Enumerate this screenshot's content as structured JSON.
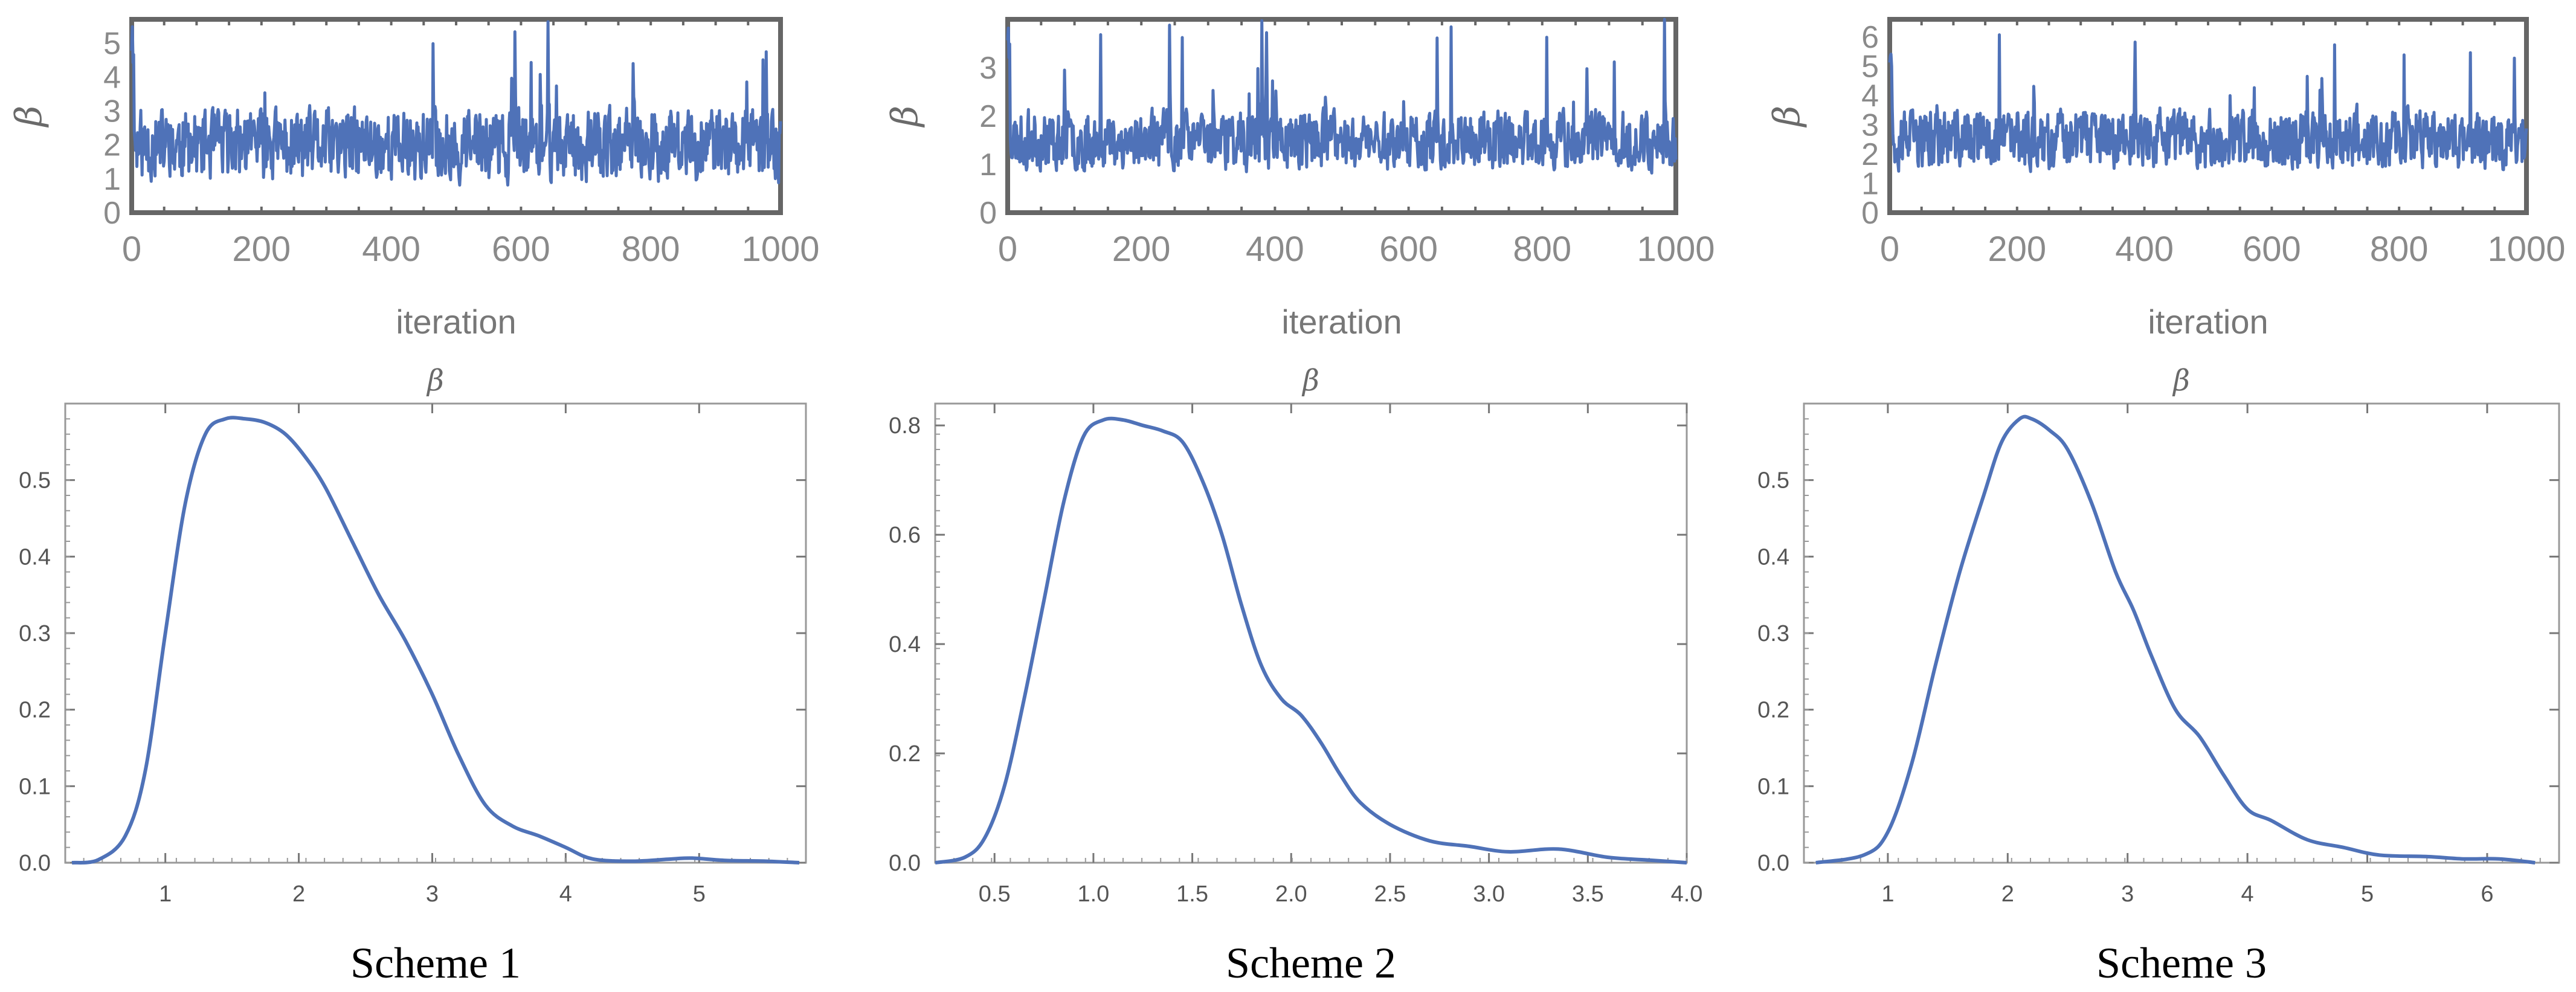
{
  "colors": {
    "line": "#4f72b8",
    "frame": "#666666",
    "density_frame": "#999999",
    "tick_text": "#555555"
  },
  "chart_data": [
    {
      "type": "line",
      "id": "trace-1",
      "panel": "Scheme 1 trace",
      "xlabel": "iteration",
      "ylabel": "β",
      "xlim": [
        0,
        1000
      ],
      "ylim": [
        0,
        5.7
      ],
      "xticks": [
        "0",
        "200",
        "400",
        "600",
        "800",
        "1000"
      ],
      "yticks": [
        "0",
        "1",
        "2",
        "3",
        "4",
        "5"
      ],
      "trace": {
        "n": 1000,
        "center": 2.0,
        "spread": 0.95,
        "min": 0.3,
        "max": 5.7,
        "seed": 11
      }
    },
    {
      "type": "line",
      "id": "trace-2",
      "panel": "Scheme 2 trace",
      "xlabel": "iteration",
      "ylabel": "β",
      "xlim": [
        0,
        1000
      ],
      "ylim": [
        0,
        4.0
      ],
      "xticks": [
        "0",
        "200",
        "400",
        "600",
        "800",
        "1000"
      ],
      "yticks": [
        "0",
        "1",
        "2",
        "3"
      ],
      "trace": {
        "n": 1000,
        "center": 1.5,
        "spread": 0.55,
        "min": 0.2,
        "max": 4.0,
        "seed": 23
      }
    },
    {
      "type": "line",
      "id": "trace-3",
      "panel": "Scheme 3 trace",
      "xlabel": "iteration",
      "ylabel": "β",
      "xlim": [
        0,
        1000
      ],
      "ylim": [
        0,
        6.6
      ],
      "xticks": [
        "0",
        "200",
        "400",
        "600",
        "800",
        "1000"
      ],
      "yticks": [
        "0",
        "1",
        "2",
        "3",
        "4",
        "5",
        "6"
      ],
      "trace": {
        "n": 1000,
        "center": 2.5,
        "spread": 0.9,
        "min": 0.4,
        "max": 6.5,
        "seed": 37
      }
    },
    {
      "type": "line",
      "id": "density-1",
      "panel": "Scheme 1 density",
      "title": "β",
      "caption": "Scheme 1",
      "xlim": [
        0.25,
        5.8
      ],
      "ylim": [
        0,
        0.6
      ],
      "xticks": [
        "1",
        "2",
        "3",
        "4",
        "5"
      ],
      "yticks": [
        "0.0",
        "0.1",
        "0.2",
        "0.3",
        "0.4",
        "0.5"
      ],
      "x": [
        0.3,
        0.5,
        0.7,
        0.85,
        1.0,
        1.15,
        1.3,
        1.45,
        1.6,
        1.75,
        1.9,
        2.05,
        2.2,
        2.4,
        2.6,
        2.8,
        3.0,
        3.2,
        3.4,
        3.6,
        3.8,
        4.0,
        4.2,
        4.5,
        4.8,
        4.95,
        5.2,
        5.5,
        5.75
      ],
      "y": [
        0.0,
        0.004,
        0.035,
        0.12,
        0.3,
        0.47,
        0.56,
        0.58,
        0.58,
        0.575,
        0.56,
        0.53,
        0.49,
        0.42,
        0.35,
        0.29,
        0.22,
        0.14,
        0.075,
        0.048,
        0.035,
        0.02,
        0.005,
        0.002,
        0.005,
        0.006,
        0.003,
        0.002,
        0.0
      ]
    },
    {
      "type": "line",
      "id": "density-2",
      "panel": "Scheme 2 density",
      "title": "β",
      "caption": "Scheme 2",
      "xlim": [
        0.2,
        4.0
      ],
      "ylim": [
        0,
        0.84
      ],
      "xticks": [
        "0.5",
        "1.0",
        "1.5",
        "2.0",
        "2.5",
        "3.0",
        "3.5",
        "4.0"
      ],
      "yticks": [
        "0.0",
        "0.2",
        "0.4",
        "0.6",
        "0.8"
      ],
      "x": [
        0.2,
        0.35,
        0.45,
        0.55,
        0.65,
        0.75,
        0.85,
        0.95,
        1.05,
        1.15,
        1.25,
        1.35,
        1.45,
        1.55,
        1.65,
        1.75,
        1.85,
        1.95,
        2.05,
        2.15,
        2.25,
        2.35,
        2.5,
        2.7,
        2.9,
        3.1,
        3.35,
        3.6,
        3.8,
        4.0
      ],
      "y": [
        0.0,
        0.01,
        0.045,
        0.14,
        0.3,
        0.48,
        0.66,
        0.78,
        0.81,
        0.81,
        0.8,
        0.79,
        0.77,
        0.7,
        0.6,
        0.47,
        0.36,
        0.3,
        0.27,
        0.22,
        0.16,
        0.11,
        0.07,
        0.04,
        0.03,
        0.02,
        0.025,
        0.01,
        0.005,
        0.0
      ]
    },
    {
      "type": "line",
      "id": "density-3",
      "panel": "Scheme 3 density",
      "title": "β",
      "caption": "Scheme 3",
      "xlim": [
        0.3,
        6.6
      ],
      "ylim": [
        0,
        0.6
      ],
      "xticks": [
        "1",
        "2",
        "3",
        "4",
        "5",
        "6"
      ],
      "yticks": [
        "0.0",
        "0.1",
        "0.2",
        "0.3",
        "0.4",
        "0.5"
      ],
      "x": [
        0.4,
        0.8,
        1.0,
        1.2,
        1.4,
        1.6,
        1.8,
        1.95,
        2.1,
        2.2,
        2.35,
        2.5,
        2.7,
        2.9,
        3.05,
        3.2,
        3.4,
        3.6,
        3.8,
        4.0,
        4.2,
        4.5,
        4.8,
        5.1,
        5.5,
        5.8,
        6.1,
        6.4
      ],
      "y": [
        0.0,
        0.01,
        0.04,
        0.13,
        0.26,
        0.38,
        0.48,
        0.55,
        0.58,
        0.58,
        0.565,
        0.54,
        0.47,
        0.38,
        0.33,
        0.27,
        0.2,
        0.165,
        0.115,
        0.07,
        0.055,
        0.03,
        0.02,
        0.01,
        0.008,
        0.005,
        0.005,
        0.0
      ]
    }
  ]
}
